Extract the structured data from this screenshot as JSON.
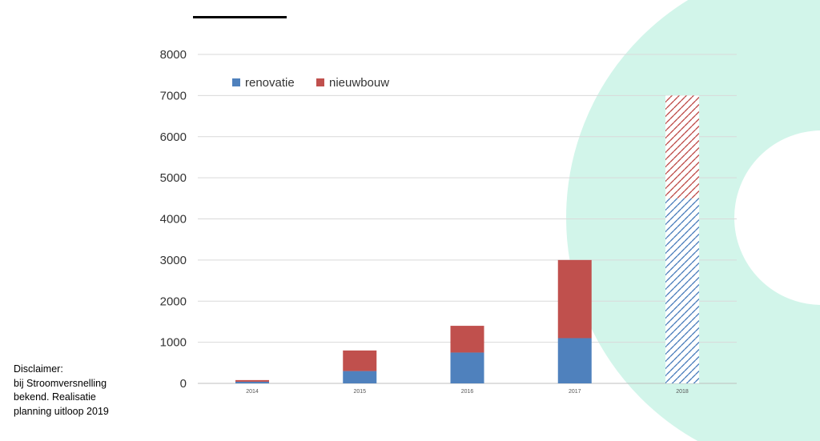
{
  "chart_data": {
    "type": "bar",
    "stacked": true,
    "categories": [
      "2014",
      "2015",
      "2016",
      "2017",
      "2018"
    ],
    "series": [
      {
        "name": "renovatie",
        "values": [
          40,
          300,
          750,
          1100,
          4500
        ]
      },
      {
        "name": "nieuwbouw",
        "values": [
          40,
          500,
          650,
          1900,
          2500
        ]
      }
    ],
    "hatched_categories": [
      "2018"
    ],
    "ylim": [
      0,
      8000
    ],
    "yticks": [
      "0",
      "1000",
      "2000",
      "3000",
      "4000",
      "5000",
      "6000",
      "7000",
      "8000"
    ],
    "grid": true,
    "legend_position": "top-left",
    "colors": {
      "renovatie": "#4f81bd",
      "nieuwbouw": "#c0504d"
    }
  },
  "disclaimer": {
    "lines": [
      "Disclaimer:",
      "bij Stroomversnelling",
      "bekend. Realisatie",
      "planning uitloop 2019"
    ]
  },
  "decoration": {
    "ring_color": "#d2f5ea"
  }
}
